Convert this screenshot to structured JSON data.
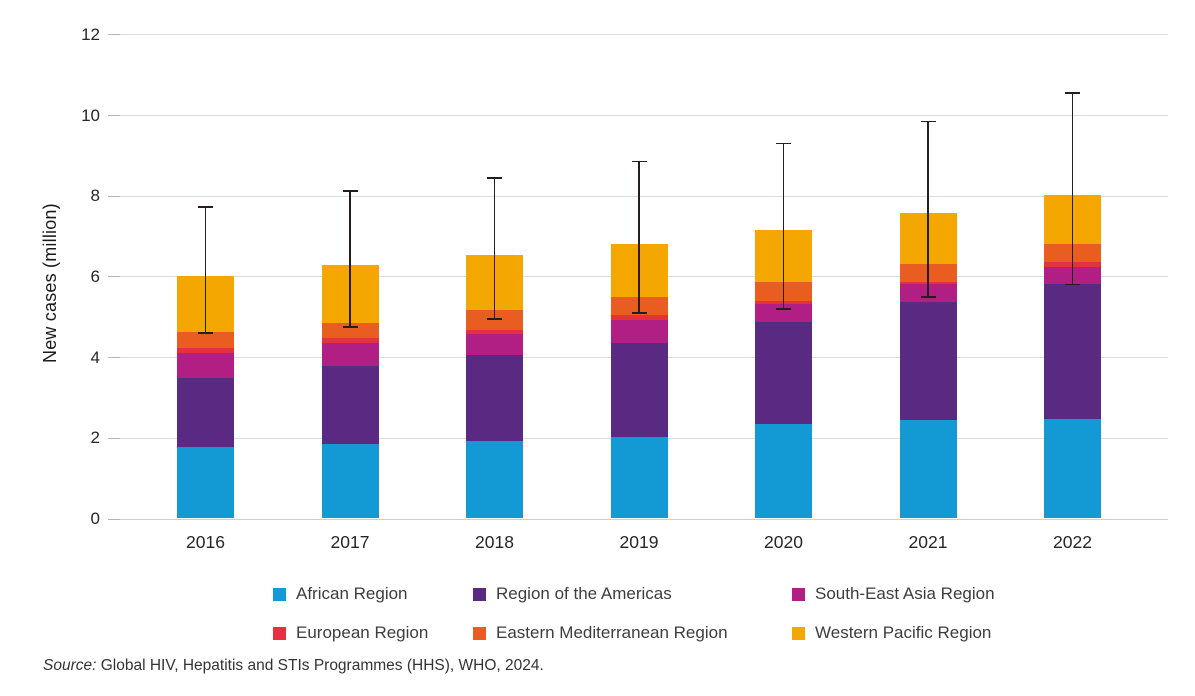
{
  "chart_data": {
    "type": "bar",
    "stacked": true,
    "title": "",
    "xlabel": "",
    "ylabel": "New cases (million)",
    "ylim": [
      0,
      12
    ],
    "yticks": [
      0,
      2,
      4,
      6,
      8,
      10,
      12
    ],
    "grid": true,
    "legend_position": "bottom",
    "categories": [
      "2016",
      "2017",
      "2018",
      "2019",
      "2020",
      "2021",
      "2022"
    ],
    "series": [
      {
        "name": "African Region",
        "color": "#1399d4",
        "values": [
          1.78,
          1.85,
          1.93,
          2.02,
          2.33,
          2.45,
          2.47
        ]
      },
      {
        "name": "Region of the Americas",
        "color": "#5a2a82",
        "values": [
          1.7,
          1.92,
          2.11,
          2.33,
          2.53,
          2.91,
          3.33
        ]
      },
      {
        "name": "South-East Asia Region",
        "color": "#b11e84",
        "values": [
          0.63,
          0.58,
          0.54,
          0.57,
          0.46,
          0.45,
          0.43
        ]
      },
      {
        "name": "European Region",
        "color": "#e4303f",
        "values": [
          0.11,
          0.13,
          0.1,
          0.12,
          0.08,
          0.05,
          0.12
        ]
      },
      {
        "name": "Eastern Mediterranean Region",
        "color": "#e95d20",
        "values": [
          0.41,
          0.37,
          0.49,
          0.44,
          0.47,
          0.44,
          0.46
        ]
      },
      {
        "name": "Western Pacific Region",
        "color": "#f4a700",
        "values": [
          1.37,
          1.43,
          1.36,
          1.32,
          1.27,
          1.27,
          1.21
        ]
      }
    ],
    "totals": [
      6.0,
      6.28,
      6.53,
      6.8,
      7.14,
      7.57,
      8.02
    ],
    "error_bars": {
      "low": [
        4.6,
        4.75,
        4.95,
        5.1,
        5.2,
        5.5,
        5.8
      ],
      "high": [
        7.73,
        8.12,
        8.45,
        8.85,
        9.3,
        9.85,
        10.55
      ]
    },
    "error_bar_color": "#231f20"
  },
  "source": {
    "prefix": "Source:",
    "text": " Global HIV, Hepatitis and STIs Programmes (HHS), WHO, 2024."
  }
}
